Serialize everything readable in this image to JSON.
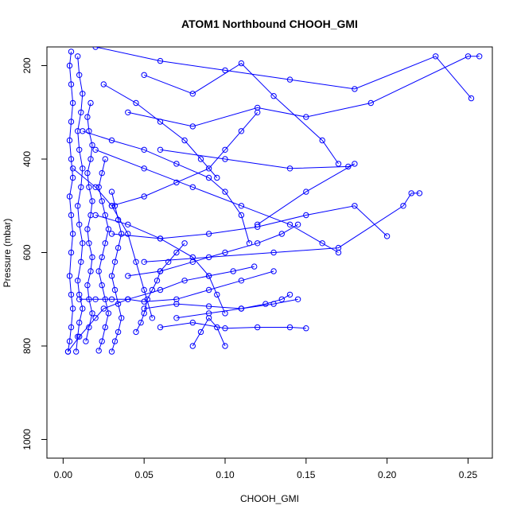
{
  "chart_data": {
    "type": "line",
    "title": "ATOM1 Northbound CHOOH_GMI",
    "xlabel": "CHOOH_GMI",
    "ylabel": "Pressure (mbar)",
    "xlim": [
      -0.01,
      0.265
    ],
    "ylim": [
      1040,
      160
    ],
    "y_reversed": true,
    "grid": false,
    "legend": "none",
    "x_ticks": [
      0.0,
      0.05,
      0.1,
      0.15,
      0.2,
      0.25
    ],
    "x_tick_labels": [
      "0.00",
      "0.05",
      "0.10",
      "0.15",
      "0.20",
      "0.25"
    ],
    "y_ticks": [
      200,
      400,
      600,
      800,
      1000
    ],
    "y_tick_labels": [
      "200",
      "400",
      "600",
      "800",
      "1000"
    ],
    "series_color": "#0000ff",
    "marker": "open-circle",
    "series": [
      {
        "values": [
          [
            0.003,
            812
          ],
          [
            0.004,
            790
          ],
          [
            0.005,
            760
          ],
          [
            0.006,
            720
          ],
          [
            0.005,
            690
          ],
          [
            0.004,
            650
          ],
          [
            0.005,
            600
          ],
          [
            0.006,
            560
          ],
          [
            0.005,
            520
          ],
          [
            0.004,
            480
          ],
          [
            0.006,
            440
          ],
          [
            0.005,
            400
          ],
          [
            0.004,
            360
          ],
          [
            0.005,
            320
          ],
          [
            0.006,
            280
          ],
          [
            0.005,
            240
          ],
          [
            0.004,
            200
          ],
          [
            0.005,
            170
          ]
        ]
      },
      {
        "values": [
          [
            0.008,
            812
          ],
          [
            0.009,
            780
          ],
          [
            0.01,
            750
          ],
          [
            0.012,
            720
          ],
          [
            0.01,
            690
          ],
          [
            0.009,
            660
          ],
          [
            0.011,
            620
          ],
          [
            0.012,
            580
          ],
          [
            0.01,
            540
          ],
          [
            0.009,
            500
          ],
          [
            0.011,
            460
          ],
          [
            0.012,
            420
          ],
          [
            0.01,
            380
          ],
          [
            0.009,
            340
          ],
          [
            0.011,
            300
          ],
          [
            0.012,
            260
          ],
          [
            0.01,
            220
          ],
          [
            0.009,
            180
          ]
        ]
      },
      {
        "values": [
          [
            0.014,
            790
          ],
          [
            0.016,
            760
          ],
          [
            0.018,
            730
          ],
          [
            0.016,
            700
          ],
          [
            0.015,
            670
          ],
          [
            0.017,
            640
          ],
          [
            0.018,
            610
          ],
          [
            0.016,
            580
          ],
          [
            0.015,
            550
          ],
          [
            0.017,
            520
          ],
          [
            0.018,
            490
          ],
          [
            0.016,
            460
          ],
          [
            0.015,
            430
          ],
          [
            0.017,
            400
          ],
          [
            0.018,
            370
          ],
          [
            0.016,
            340
          ],
          [
            0.015,
            310
          ],
          [
            0.017,
            280
          ]
        ]
      },
      {
        "values": [
          [
            0.022,
            810
          ],
          [
            0.024,
            790
          ],
          [
            0.026,
            760
          ],
          [
            0.028,
            730
          ],
          [
            0.026,
            700
          ],
          [
            0.024,
            670
          ],
          [
            0.022,
            640
          ],
          [
            0.024,
            610
          ],
          [
            0.026,
            580
          ],
          [
            0.028,
            550
          ],
          [
            0.026,
            520
          ],
          [
            0.024,
            490
          ],
          [
            0.022,
            460
          ],
          [
            0.024,
            430
          ],
          [
            0.026,
            400
          ]
        ]
      },
      {
        "values": [
          [
            0.03,
            812
          ],
          [
            0.032,
            790
          ],
          [
            0.034,
            770
          ],
          [
            0.036,
            740
          ],
          [
            0.034,
            710
          ],
          [
            0.032,
            680
          ],
          [
            0.03,
            650
          ],
          [
            0.032,
            620
          ],
          [
            0.034,
            590
          ],
          [
            0.036,
            560
          ],
          [
            0.034,
            530
          ],
          [
            0.032,
            500
          ],
          [
            0.03,
            470
          ]
        ]
      },
      {
        "values": [
          [
            0.045,
            770
          ],
          [
            0.048,
            750
          ],
          [
            0.05,
            730
          ],
          [
            0.052,
            700
          ],
          [
            0.055,
            680
          ],
          [
            0.058,
            660
          ],
          [
            0.06,
            640
          ],
          [
            0.065,
            620
          ],
          [
            0.07,
            600
          ],
          [
            0.075,
            580
          ]
        ]
      },
      {
        "values": [
          [
            0.01,
            700
          ],
          [
            0.02,
            700
          ],
          [
            0.03,
            700
          ],
          [
            0.04,
            700
          ],
          [
            0.05,
            705
          ],
          [
            0.07,
            700
          ],
          [
            0.09,
            680
          ],
          [
            0.11,
            660
          ],
          [
            0.13,
            640
          ]
        ]
      },
      {
        "values": [
          [
            0.06,
            760
          ],
          [
            0.08,
            750
          ],
          [
            0.1,
            762
          ],
          [
            0.12,
            760
          ],
          [
            0.14,
            760
          ],
          [
            0.15,
            762
          ]
        ]
      },
      {
        "values": [
          [
            0.05,
            720
          ],
          [
            0.07,
            710
          ],
          [
            0.09,
            715
          ],
          [
            0.11,
            720
          ],
          [
            0.13,
            710
          ],
          [
            0.145,
            700
          ]
        ]
      },
      {
        "values": [
          [
            0.03,
            560
          ],
          [
            0.06,
            570
          ],
          [
            0.09,
            560
          ],
          [
            0.12,
            545
          ],
          [
            0.15,
            520
          ],
          [
            0.18,
            500
          ],
          [
            0.2,
            565
          ]
        ]
      },
      {
        "values": [
          [
            0.05,
            620
          ],
          [
            0.09,
            610
          ],
          [
            0.13,
            600
          ],
          [
            0.17,
            590
          ],
          [
            0.21,
            500
          ],
          [
            0.215,
            473
          ],
          [
            0.22,
            473
          ]
        ]
      },
      {
        "values": [
          [
            0.04,
            300
          ],
          [
            0.08,
            330
          ],
          [
            0.12,
            290
          ],
          [
            0.15,
            310
          ],
          [
            0.19,
            280
          ],
          [
            0.25,
            180
          ],
          [
            0.257,
            180
          ]
        ]
      },
      {
        "values": [
          [
            0.06,
            380
          ],
          [
            0.1,
            400
          ],
          [
            0.14,
            420
          ],
          [
            0.176,
            416
          ],
          [
            0.18,
            410
          ],
          [
            0.15,
            470
          ],
          [
            0.12,
            540
          ]
        ]
      },
      {
        "values": [
          [
            0.02,
            160
          ],
          [
            0.06,
            190
          ],
          [
            0.1,
            210
          ],
          [
            0.14,
            230
          ],
          [
            0.18,
            250
          ],
          [
            0.23,
            180
          ],
          [
            0.252,
            270
          ]
        ]
      },
      {
        "values": [
          [
            0.05,
            220
          ],
          [
            0.08,
            260
          ],
          [
            0.11,
            195
          ],
          [
            0.13,
            265
          ],
          [
            0.16,
            360
          ],
          [
            0.17,
            410
          ]
        ]
      },
      {
        "values": [
          [
            0.02,
            380
          ],
          [
            0.05,
            420
          ],
          [
            0.08,
            460
          ],
          [
            0.11,
            500
          ],
          [
            0.14,
            540
          ],
          [
            0.16,
            580
          ],
          [
            0.17,
            600
          ]
        ]
      },
      {
        "values": [
          [
            0.04,
            650
          ],
          [
            0.06,
            640
          ],
          [
            0.08,
            620
          ],
          [
            0.1,
            600
          ],
          [
            0.12,
            580
          ],
          [
            0.135,
            560
          ],
          [
            0.145,
            540
          ]
        ]
      },
      {
        "values": [
          [
            0.07,
            740
          ],
          [
            0.09,
            730
          ],
          [
            0.11,
            720
          ],
          [
            0.125,
            710
          ],
          [
            0.135,
            700
          ],
          [
            0.14,
            690
          ]
        ]
      },
      {
        "values": [
          [
            0.03,
            500
          ],
          [
            0.05,
            480
          ],
          [
            0.07,
            450
          ],
          [
            0.09,
            420
          ],
          [
            0.1,
            380
          ],
          [
            0.11,
            340
          ],
          [
            0.12,
            300
          ]
        ]
      },
      {
        "values": [
          [
            0.08,
            800
          ],
          [
            0.085,
            770
          ],
          [
            0.09,
            740
          ],
          [
            0.095,
            760
          ],
          [
            0.1,
            800
          ]
        ]
      },
      {
        "values": [
          [
            0.003,
            812
          ],
          [
            0.01,
            780
          ],
          [
            0.02,
            740
          ],
          [
            0.025,
            720
          ],
          [
            0.04,
            700
          ],
          [
            0.06,
            680
          ],
          [
            0.075,
            660
          ],
          [
            0.09,
            650
          ],
          [
            0.105,
            640
          ],
          [
            0.118,
            630
          ]
        ]
      },
      {
        "values": [
          [
            0.012,
            340
          ],
          [
            0.03,
            360
          ],
          [
            0.05,
            380
          ],
          [
            0.07,
            410
          ],
          [
            0.09,
            440
          ],
          [
            0.1,
            470
          ],
          [
            0.11,
            520
          ],
          [
            0.115,
            580
          ]
        ]
      },
      {
        "values": [
          [
            0.02,
            520
          ],
          [
            0.04,
            540
          ],
          [
            0.06,
            570
          ],
          [
            0.08,
            610
          ],
          [
            0.09,
            650
          ],
          [
            0.095,
            690
          ],
          [
            0.1,
            730
          ]
        ]
      },
      {
        "values": [
          [
            0.025,
            240
          ],
          [
            0.045,
            280
          ],
          [
            0.06,
            320
          ],
          [
            0.075,
            360
          ],
          [
            0.085,
            400
          ],
          [
            0.095,
            440
          ]
        ]
      },
      {
        "values": [
          [
            0.006,
            420
          ],
          [
            0.02,
            460
          ],
          [
            0.03,
            500
          ],
          [
            0.04,
            560
          ],
          [
            0.045,
            620
          ],
          [
            0.05,
            680
          ],
          [
            0.055,
            740
          ]
        ]
      }
    ]
  }
}
